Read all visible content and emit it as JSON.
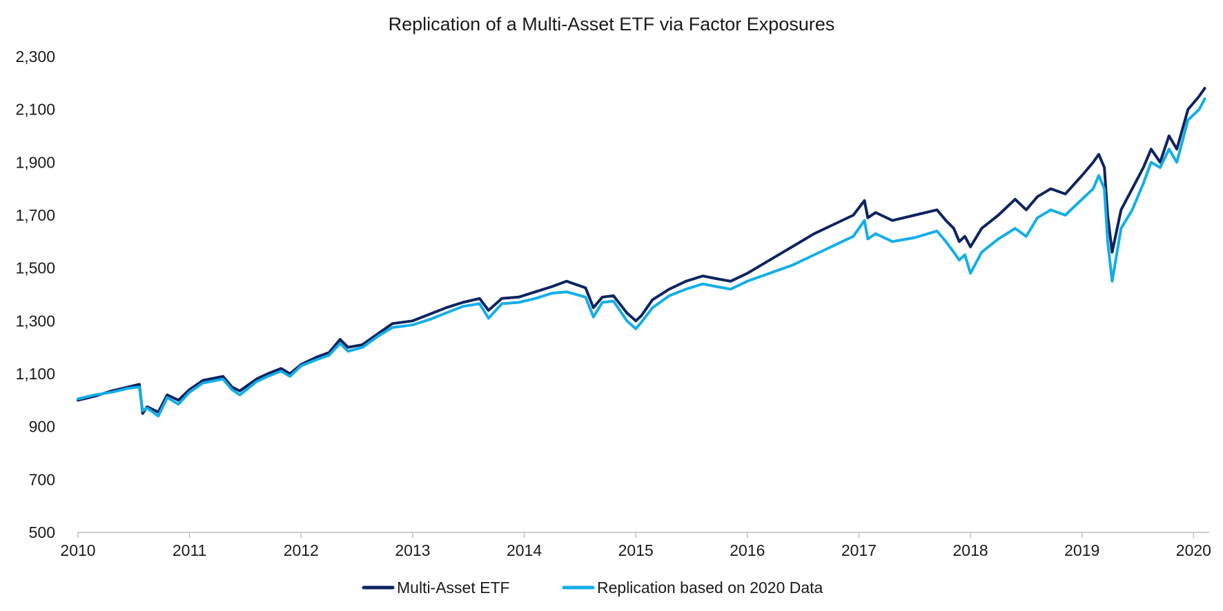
{
  "chart_data": {
    "type": "line",
    "title": "Replication of a Multi-Asset ETF via Factor Exposures",
    "xlabel": "",
    "ylabel": "",
    "xlim": [
      2010,
      2020.14
    ],
    "ylim": [
      500,
      2300
    ],
    "grid": false,
    "legend_position": "bottom",
    "y_ticks": [
      500,
      700,
      900,
      1100,
      1300,
      1500,
      1700,
      1900,
      2100,
      2300
    ],
    "y_tick_labels": [
      "500",
      "700",
      "900",
      "1,100",
      "1,300",
      "1,500",
      "1,700",
      "1,900",
      "2,100",
      "2,300"
    ],
    "x_ticks": [
      2010,
      2011,
      2012,
      2013,
      2014,
      2015,
      2016,
      2017,
      2018,
      2019,
      2020
    ],
    "x_tick_labels": [
      "2010",
      "2011",
      "2012",
      "2013",
      "2014",
      "2015",
      "2016",
      "2017",
      "2018",
      "2019",
      "2020"
    ],
    "series": [
      {
        "name": "Multi-Asset ETF",
        "color": "#0d2461",
        "x": [
          2010.0,
          2010.15,
          2010.3,
          2010.45,
          2010.55,
          2010.58,
          2010.62,
          2010.72,
          2010.8,
          2010.9,
          2011.0,
          2011.12,
          2011.3,
          2011.38,
          2011.45,
          2011.6,
          2011.7,
          2011.82,
          2011.9,
          2012.0,
          2012.15,
          2012.25,
          2012.35,
          2012.42,
          2012.55,
          2012.7,
          2012.82,
          2013.0,
          2013.15,
          2013.3,
          2013.45,
          2013.6,
          2013.68,
          2013.8,
          2013.95,
          2014.1,
          2014.25,
          2014.38,
          2014.55,
          2014.62,
          2014.7,
          2014.8,
          2014.92,
          2015.0,
          2015.05,
          2015.15,
          2015.3,
          2015.45,
          2015.6,
          2015.72,
          2015.85,
          2016.0,
          2016.2,
          2016.4,
          2016.6,
          2016.8,
          2016.95,
          2017.05,
          2017.08,
          2017.15,
          2017.3,
          2017.5,
          2017.7,
          2017.78,
          2017.85,
          2017.9,
          2017.95,
          2018.0,
          2018.1,
          2018.25,
          2018.4,
          2018.5,
          2018.6,
          2018.72,
          2018.85,
          2019.0,
          2019.1,
          2019.15,
          2019.2,
          2019.23,
          2019.27,
          2019.35,
          2019.45,
          2019.55,
          2019.62,
          2019.7,
          2019.78,
          2019.85,
          2019.95,
          2020.05,
          2020.1
        ],
        "values": [
          1000,
          1015,
          1035,
          1050,
          1060,
          950,
          975,
          955,
          1020,
          1000,
          1040,
          1075,
          1090,
          1050,
          1035,
          1080,
          1100,
          1120,
          1100,
          1135,
          1165,
          1180,
          1230,
          1200,
          1210,
          1255,
          1290,
          1300,
          1325,
          1350,
          1370,
          1385,
          1340,
          1385,
          1390,
          1410,
          1430,
          1450,
          1425,
          1350,
          1390,
          1395,
          1330,
          1300,
          1320,
          1380,
          1420,
          1450,
          1470,
          1460,
          1450,
          1480,
          1530,
          1580,
          1630,
          1670,
          1700,
          1755,
          1690,
          1710,
          1680,
          1700,
          1720,
          1680,
          1650,
          1600,
          1620,
          1580,
          1650,
          1700,
          1760,
          1720,
          1770,
          1800,
          1780,
          1850,
          1900,
          1930,
          1880,
          1700,
          1560,
          1720,
          1800,
          1880,
          1950,
          1900,
          2000,
          1950,
          2100,
          2150,
          2180
        ]
      },
      {
        "name": "Replication based on 2020 Data",
        "color": "#12aee8",
        "x": [
          2010.0,
          2010.15,
          2010.3,
          2010.45,
          2010.55,
          2010.58,
          2010.62,
          2010.72,
          2010.8,
          2010.9,
          2011.0,
          2011.12,
          2011.3,
          2011.38,
          2011.45,
          2011.6,
          2011.7,
          2011.82,
          2011.9,
          2012.0,
          2012.15,
          2012.25,
          2012.35,
          2012.42,
          2012.55,
          2012.7,
          2012.82,
          2013.0,
          2013.15,
          2013.3,
          2013.45,
          2013.6,
          2013.68,
          2013.8,
          2013.95,
          2014.1,
          2014.25,
          2014.38,
          2014.55,
          2014.62,
          2014.7,
          2014.8,
          2014.92,
          2015.0,
          2015.05,
          2015.15,
          2015.3,
          2015.45,
          2015.6,
          2015.72,
          2015.85,
          2016.0,
          2016.2,
          2016.4,
          2016.6,
          2016.8,
          2016.95,
          2017.05,
          2017.08,
          2017.15,
          2017.3,
          2017.5,
          2017.7,
          2017.78,
          2017.85,
          2017.9,
          2017.95,
          2018.0,
          2018.1,
          2018.25,
          2018.4,
          2018.5,
          2018.6,
          2018.72,
          2018.85,
          2019.0,
          2019.1,
          2019.15,
          2019.2,
          2019.23,
          2019.27,
          2019.35,
          2019.45,
          2019.55,
          2019.62,
          2019.7,
          2019.78,
          2019.85,
          2019.95,
          2020.05,
          2020.1
        ],
        "values": [
          1005,
          1020,
          1030,
          1045,
          1050,
          960,
          970,
          940,
          1010,
          985,
          1030,
          1065,
          1080,
          1040,
          1020,
          1070,
          1090,
          1110,
          1090,
          1130,
          1155,
          1170,
          1215,
          1185,
          1200,
          1245,
          1275,
          1285,
          1305,
          1330,
          1355,
          1365,
          1310,
          1365,
          1370,
          1385,
          1405,
          1410,
          1390,
          1315,
          1370,
          1375,
          1300,
          1270,
          1295,
          1350,
          1395,
          1420,
          1440,
          1430,
          1420,
          1450,
          1480,
          1510,
          1550,
          1590,
          1620,
          1680,
          1610,
          1630,
          1600,
          1615,
          1640,
          1600,
          1560,
          1530,
          1550,
          1480,
          1560,
          1610,
          1650,
          1620,
          1690,
          1720,
          1700,
          1760,
          1800,
          1850,
          1800,
          1600,
          1450,
          1650,
          1720,
          1820,
          1900,
          1880,
          1950,
          1900,
          2060,
          2100,
          2140
        ]
      }
    ]
  }
}
